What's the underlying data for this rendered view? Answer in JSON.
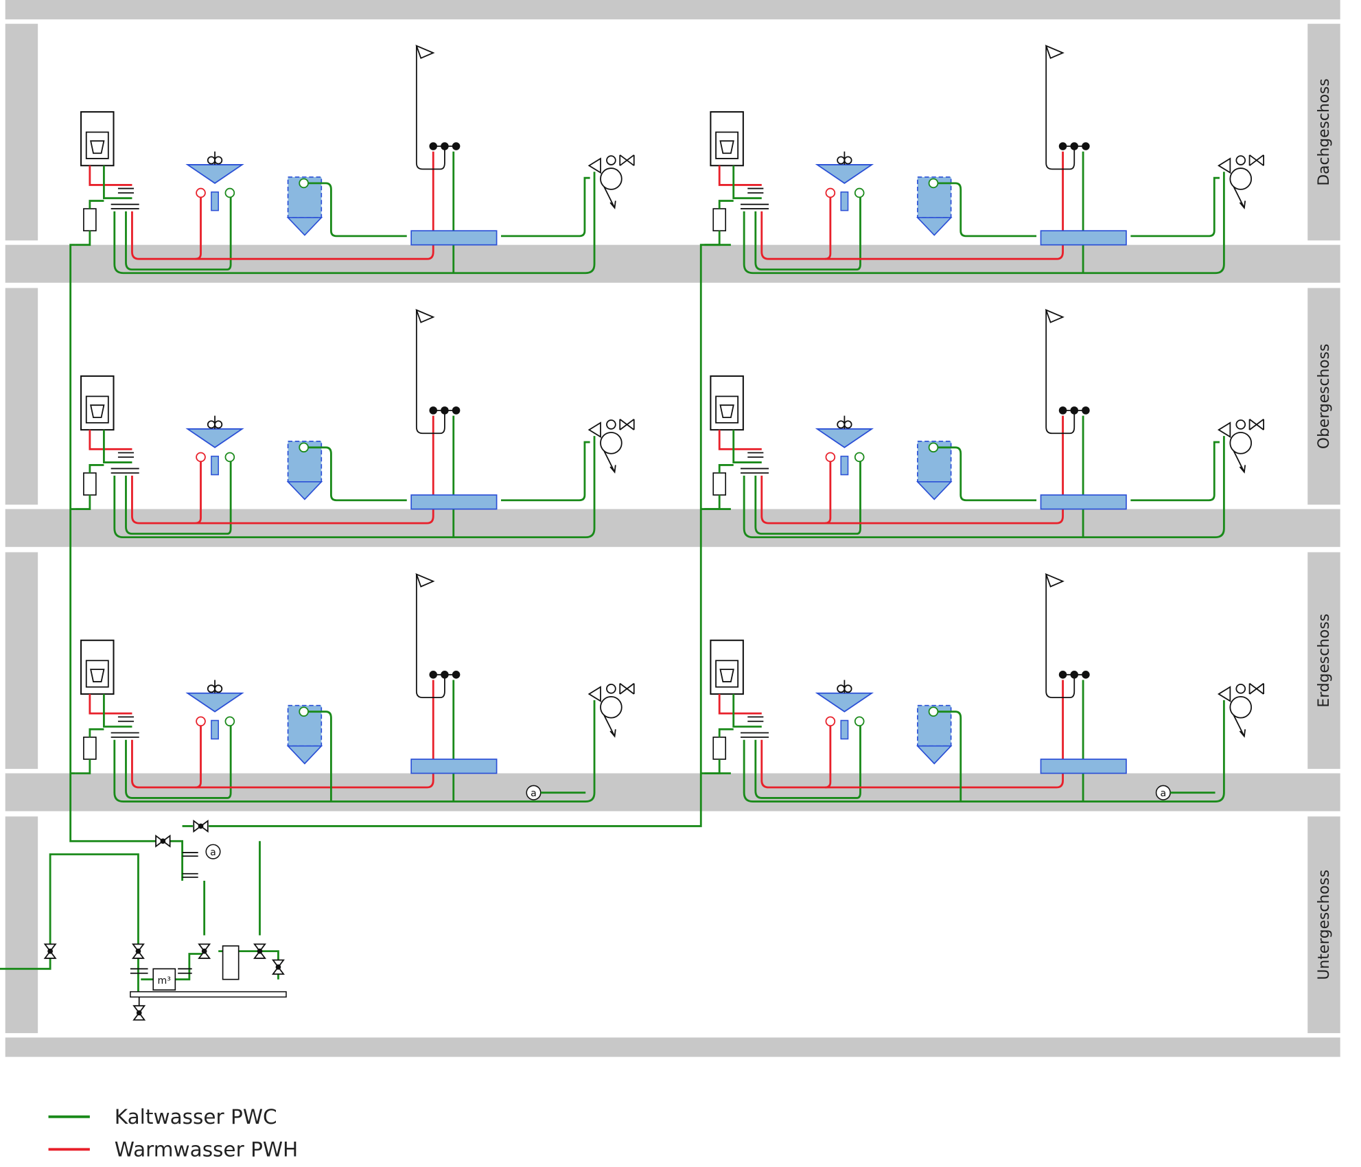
{
  "floors": [
    {
      "label": "Dachgeschoss"
    },
    {
      "label": "Obergeschoss"
    },
    {
      "label": "Erdgeschoss"
    },
    {
      "label": "Untergeschoss"
    }
  ],
  "legend": [
    {
      "label": "Kaltwasser PWC"
    },
    {
      "label": "Warmwasser PWH"
    }
  ],
  "symbols": {
    "drain_connection": "a",
    "water_meter": "m³"
  }
}
